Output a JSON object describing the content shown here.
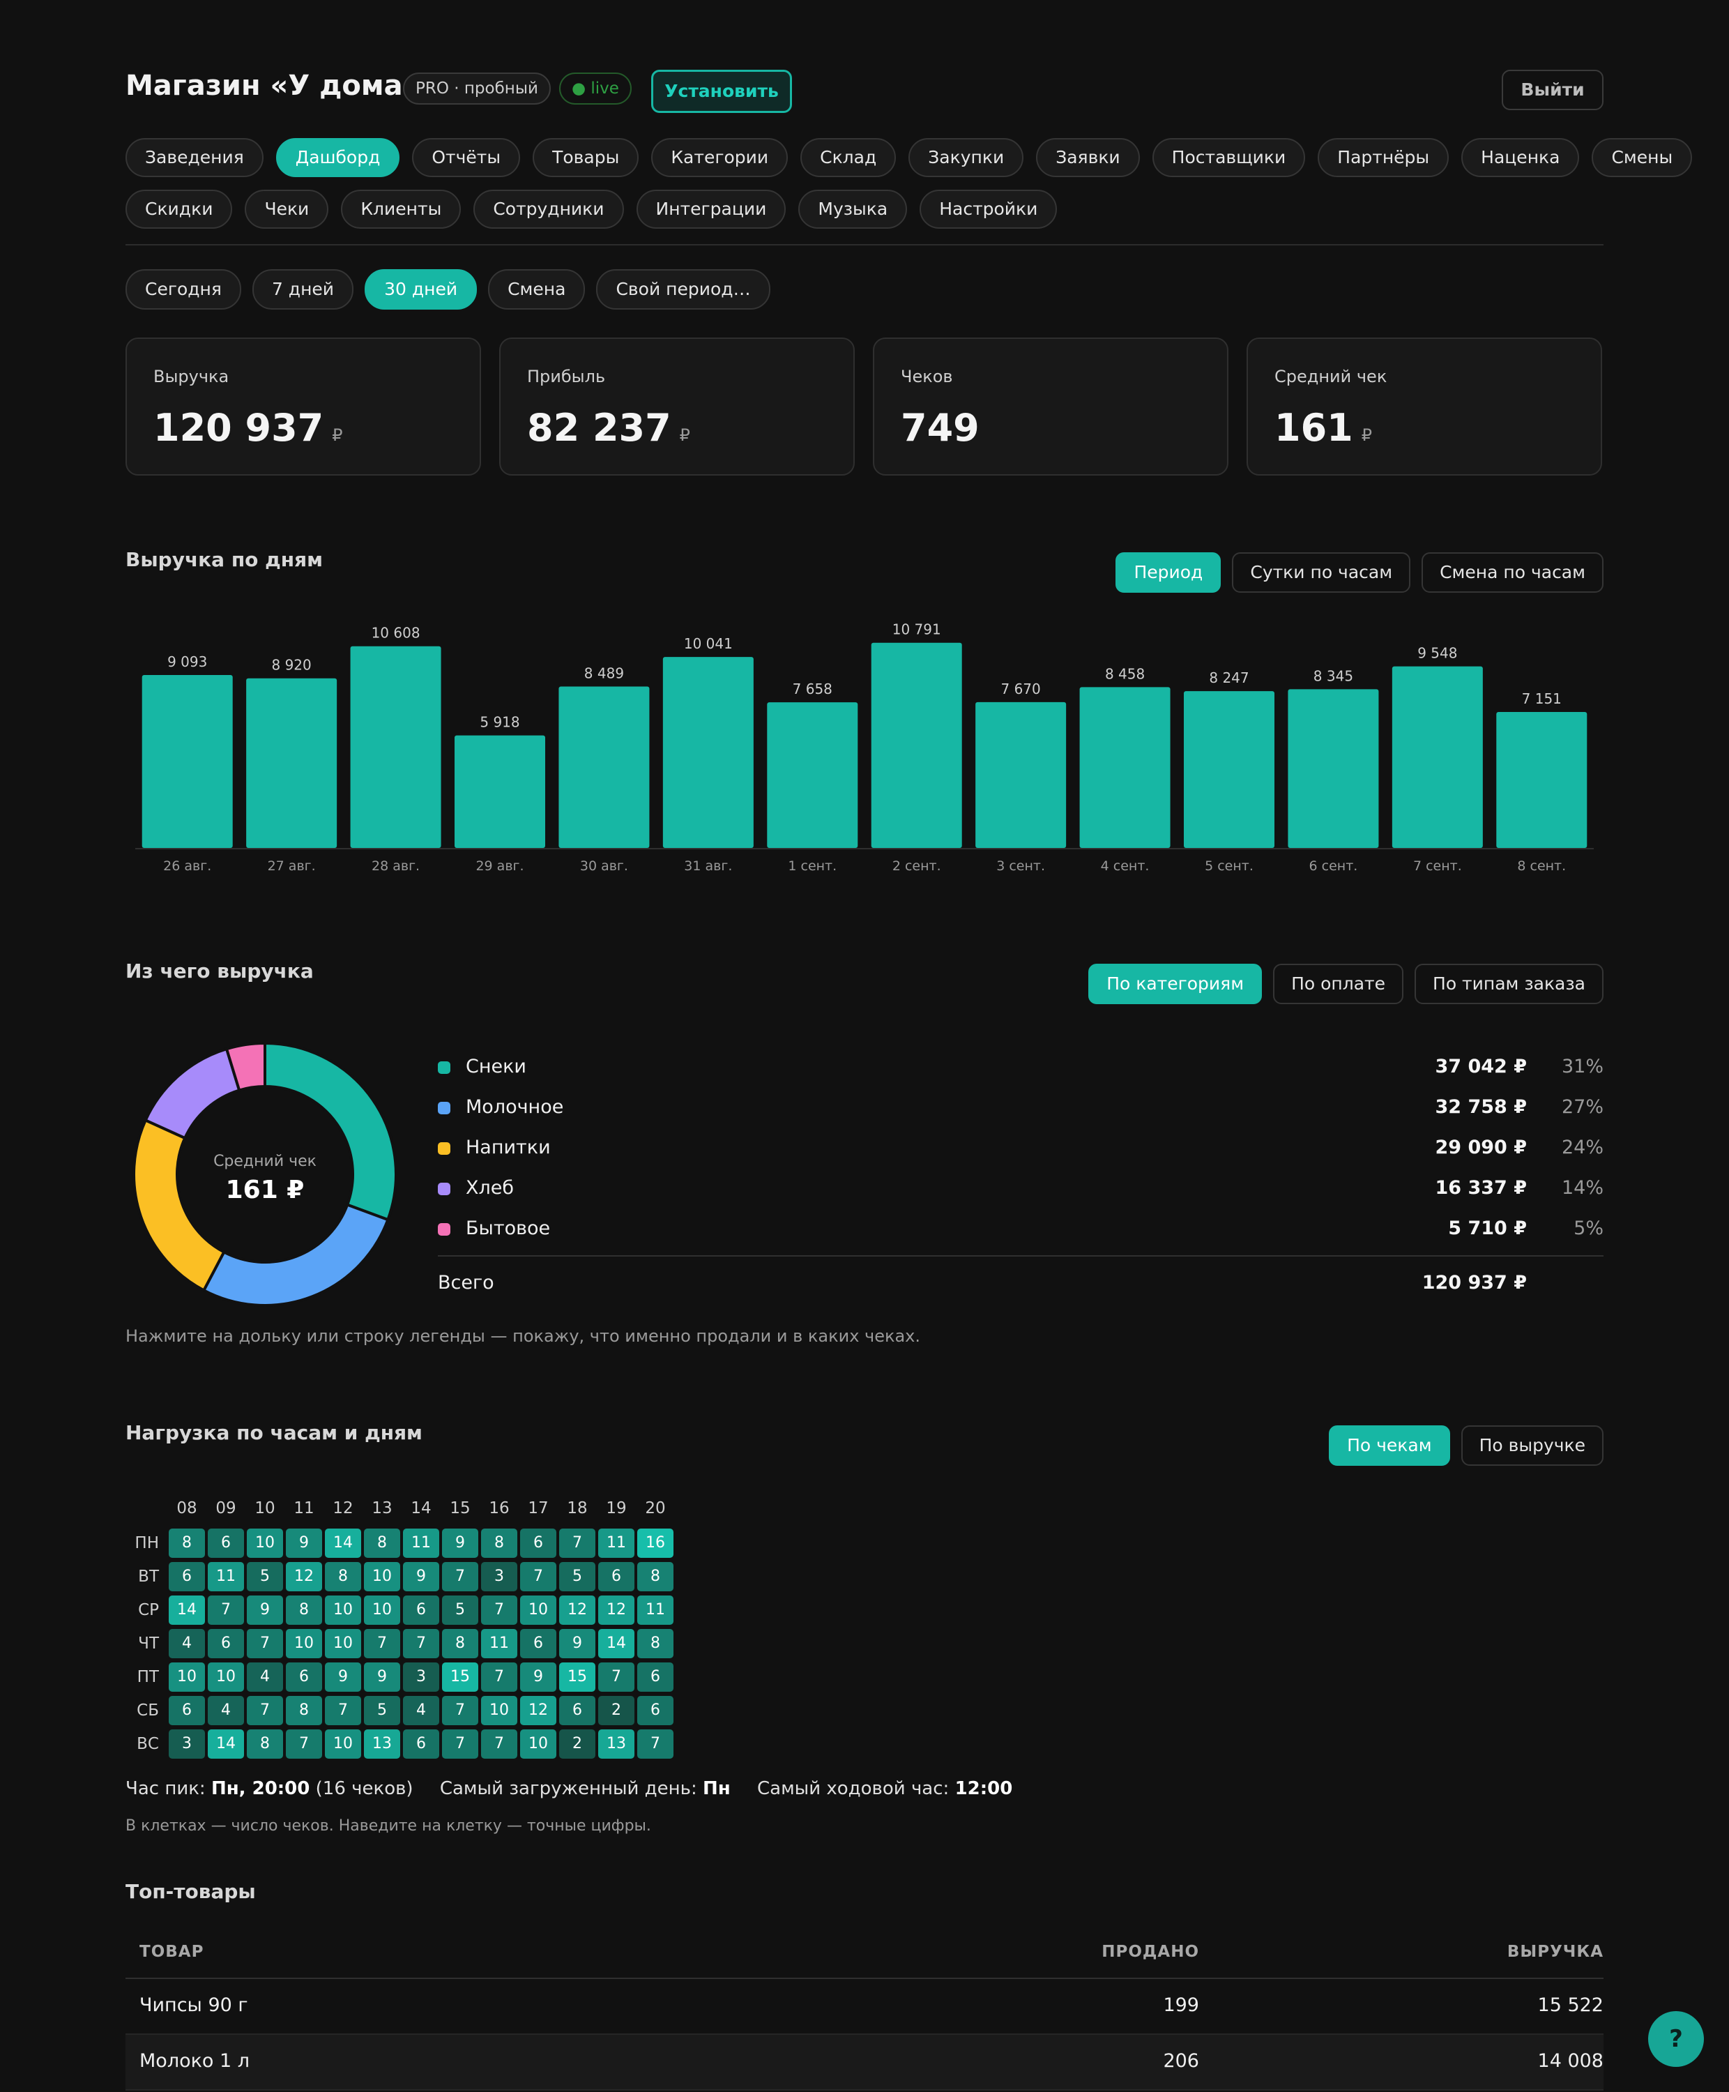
{
  "header": {
    "title": "Магазин «У дома»",
    "plan_badge": "PRO · пробный",
    "live_badge": "● live",
    "install_label": "Установить",
    "logout_label": "Выйти"
  },
  "nav": {
    "row1": [
      "Заведения",
      "Дашборд",
      "Отчёты",
      "Товары",
      "Категории",
      "Склад",
      "Закупки",
      "Заявки",
      "Поставщики",
      "Партнёры",
      "Наценка",
      "Смены"
    ],
    "row2": [
      "Скидки",
      "Чеки",
      "Клиенты",
      "Сотрудники",
      "Интеграции",
      "Музыка",
      "Настройки"
    ],
    "active": "Дашборд"
  },
  "period": {
    "options": [
      "Сегодня",
      "7 дней",
      "30 дней",
      "Смена",
      "Свой период…"
    ],
    "active": "30 дней"
  },
  "kpis": [
    {
      "label": "Выручка",
      "value": "120 937",
      "unit": "₽"
    },
    {
      "label": "Прибыль",
      "value": "82 237",
      "unit": "₽"
    },
    {
      "label": "Чеков",
      "value": "749",
      "unit": ""
    },
    {
      "label": "Средний чек",
      "value": "161",
      "unit": "₽"
    }
  ],
  "revenue_section": {
    "title": "Выручка по дням",
    "modes": [
      "Период",
      "Сутки по часам",
      "Смена по часам"
    ],
    "active": "Период"
  },
  "chart_data": {
    "type": "bar",
    "categories": [
      "26 авг.",
      "27 авг.",
      "28 авг.",
      "29 авг.",
      "30 авг.",
      "31 авг.",
      "1 сент.",
      "2 сент.",
      "3 сент.",
      "4 сент.",
      "5 сент.",
      "6 сент.",
      "7 сент.",
      "8 сент."
    ],
    "values": [
      9093,
      8920,
      10608,
      5918,
      8489,
      10041,
      7658,
      10791,
      7670,
      8458,
      8247,
      8345,
      9548,
      7151
    ],
    "labels": [
      "9 093",
      "8 920",
      "10 608",
      "5 918",
      "8 489",
      "10 041",
      "7 658",
      "10 791",
      "7 670",
      "8 458",
      "8 247",
      "8 345",
      "9 548",
      "7 151"
    ],
    "title": "Выручка по дням",
    "ylim": [
      0,
      11000
    ],
    "color": "#17b7a4",
    "grid": false
  },
  "breakdown": {
    "title": "Из чего выручка",
    "modes": [
      "По категориям",
      "По оплате",
      "По типам заказа"
    ],
    "active": "По категориям",
    "center_label": "Средний чек",
    "center_value": "161 ₽",
    "items": [
      {
        "name": "Снеки",
        "value": 37042,
        "value_text": "37 042 ₽",
        "pct": "31%",
        "color": "#17b7a4"
      },
      {
        "name": "Молочное",
        "value": 32758,
        "value_text": "32 758 ₽",
        "pct": "27%",
        "color": "#5ba4f7"
      },
      {
        "name": "Напитки",
        "value": 29090,
        "value_text": "29 090 ₽",
        "pct": "24%",
        "color": "#fbbf24"
      },
      {
        "name": "Хлеб",
        "value": 16337,
        "value_text": "16 337 ₽",
        "pct": "14%",
        "color": "#a78bfa"
      },
      {
        "name": "Бытовое",
        "value": 5710,
        "value_text": "5 710 ₽",
        "pct": "5%",
        "color": "#f472b6"
      }
    ],
    "total_label": "Всего",
    "total_value": "120 937 ₽",
    "hint": "Нажмите на дольку или строку легенды — покажу, что именно продали и в каких чеках."
  },
  "heatmap": {
    "title": "Нагрузка по часам и дням",
    "modes": [
      "По чекам",
      "По выручке"
    ],
    "active": "По чекам",
    "hours": [
      "08",
      "09",
      "10",
      "11",
      "12",
      "13",
      "14",
      "15",
      "16",
      "17",
      "18",
      "19",
      "20"
    ],
    "days": [
      "ПН",
      "ВТ",
      "СР",
      "ЧТ",
      "ПТ",
      "СБ",
      "ВС"
    ],
    "values": [
      [
        8,
        6,
        10,
        9,
        14,
        8,
        11,
        9,
        8,
        6,
        7,
        11,
        16
      ],
      [
        6,
        11,
        5,
        12,
        8,
        10,
        9,
        7,
        3,
        7,
        5,
        6,
        8
      ],
      [
        14,
        7,
        9,
        8,
        10,
        10,
        6,
        5,
        7,
        10,
        12,
        12,
        11
      ],
      [
        4,
        6,
        7,
        10,
        10,
        7,
        7,
        8,
        11,
        6,
        9,
        14,
        8
      ],
      [
        10,
        10,
        4,
        6,
        9,
        9,
        3,
        15,
        7,
        9,
        15,
        7,
        6
      ],
      [
        6,
        4,
        7,
        8,
        7,
        5,
        4,
        7,
        10,
        12,
        6,
        2,
        6
      ],
      [
        3,
        14,
        8,
        7,
        10,
        13,
        6,
        7,
        7,
        10,
        2,
        13,
        7
      ]
    ],
    "peak_hour_label": "Час пик:",
    "peak_hour_value": "Пн, 20:00",
    "peak_hour_note": "(16 чеков)",
    "busiest_day_label": "Самый загруженный день:",
    "busiest_day_value": "Пн",
    "top_hour_label": "Самый ходовой час:",
    "top_hour_value": "12:00",
    "hint": "В клетках — число чеков. Наведите на клетку — точные цифры."
  },
  "top_products": {
    "title": "Топ-товары",
    "columns": [
      "ТОВАР",
      "ПРОДАНО",
      "ВЫРУЧКА"
    ],
    "rows": [
      {
        "name": "Чипсы 90 г",
        "sold": "199",
        "revenue": "15 522"
      },
      {
        "name": "Молоко 1 л",
        "sold": "206",
        "revenue": "14 008"
      }
    ]
  },
  "help_label": "?"
}
